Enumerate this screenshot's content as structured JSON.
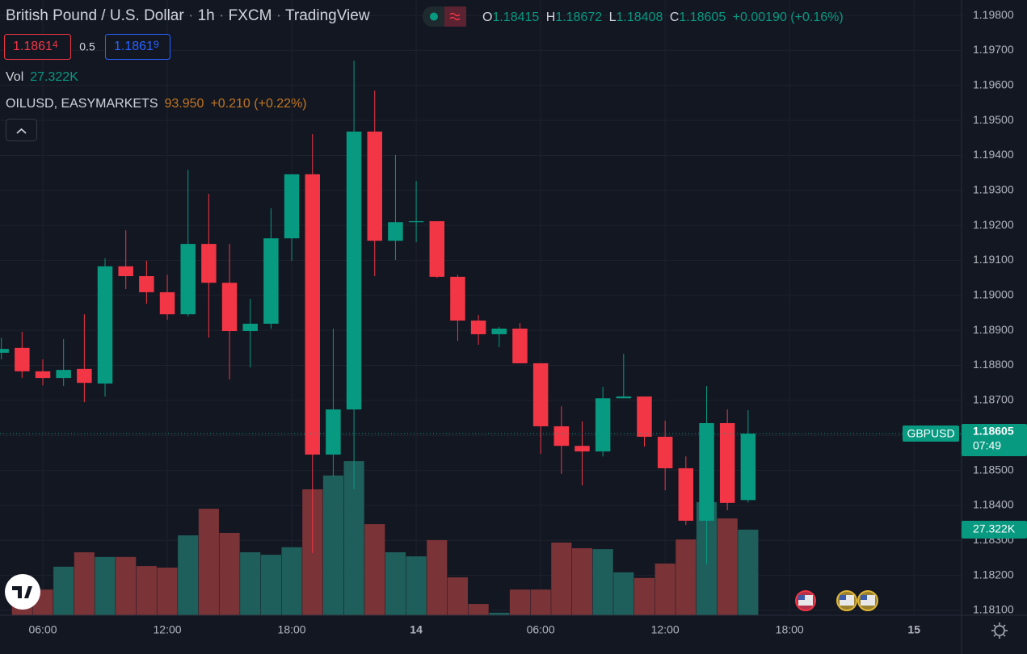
{
  "chart_data": {
    "type": "candlestick",
    "header": {
      "symbol": "British Pound / U.S. Dollar",
      "sep": "·",
      "interval": "1h",
      "exchange": "FXCM",
      "source": "TradingView",
      "open_label": "O",
      "open": 1.18415,
      "high_label": "H",
      "high": 1.18672,
      "low_label": "L",
      "low": 1.18408,
      "close_label": "C",
      "close": 1.18605,
      "change": "+0.00190 (+0.16%)"
    },
    "sell": {
      "price": "1.1861",
      "pip": "4"
    },
    "spread": "0.5",
    "buy": {
      "price": "1.1861",
      "pip": "9"
    },
    "volume_legend": {
      "label": "Vol",
      "value": "27.322K"
    },
    "overlay": {
      "name": "OILUSD, EASYMARKETS",
      "value": "93.950",
      "change": "+0.210 (+0.22%)"
    },
    "x": [
      4,
      5,
      6,
      7,
      8,
      9,
      10,
      11,
      12,
      13,
      14,
      15,
      16,
      17,
      18,
      19,
      20,
      21,
      22,
      23,
      24,
      25,
      26,
      27,
      28,
      29,
      30,
      31,
      32,
      33,
      34,
      35,
      36,
      37,
      38,
      39,
      40
    ],
    "open": [
      1.18836,
      1.1885,
      1.18783,
      1.18764,
      1.1879,
      1.18748,
      1.19083,
      1.19055,
      1.19009,
      1.18946,
      1.19147,
      1.19036,
      1.18898,
      1.18919,
      1.19163,
      1.19346,
      1.18545,
      1.18674,
      1.19468,
      1.19156,
      1.19209,
      1.19212,
      1.19053,
      1.18928,
      1.18889,
      1.18905,
      1.18806,
      1.18626,
      1.1857,
      1.18554,
      1.18706,
      1.18711,
      1.18596,
      1.18506,
      1.18356,
      1.18635,
      1.18415
    ],
    "high": [
      1.18879,
      1.18896,
      1.18817,
      1.18875,
      1.18946,
      1.19106,
      1.19186,
      1.19099,
      1.19059,
      1.19359,
      1.1929,
      1.19147,
      1.1899,
      1.19249,
      1.19346,
      1.19461,
      1.18905,
      1.19671,
      1.19585,
      1.19401,
      1.19327,
      1.19212,
      1.19059,
      1.18944,
      1.1891,
      1.18921,
      1.18806,
      1.18683,
      1.1864,
      1.18739,
      1.18833,
      1.18711,
      1.18642,
      1.1854,
      1.18741,
      1.18674,
      1.18672
    ],
    "low": [
      1.18817,
      1.18764,
      1.18743,
      1.18741,
      1.18695,
      1.18711,
      1.19018,
      1.18976,
      1.1893,
      1.1894,
      1.18879,
      1.1876,
      1.18794,
      1.18905,
      1.19099,
      1.18264,
      1.18483,
      1.18446,
      1.19055,
      1.19101,
      1.19152,
      1.1905,
      1.1887,
      1.18859,
      1.18852,
      1.18806,
      1.18547,
      1.1849,
      1.18457,
      1.1854,
      1.18706,
      1.18568,
      1.18443,
      1.18344,
      1.18231,
      1.18386,
      1.18408
    ],
    "close": [
      1.18847,
      1.18783,
      1.18764,
      1.18787,
      1.1875,
      1.19083,
      1.19055,
      1.19009,
      1.18946,
      1.19147,
      1.19036,
      1.18898,
      1.18919,
      1.19163,
      1.19346,
      1.18545,
      1.18674,
      1.19468,
      1.19156,
      1.19209,
      1.19212,
      1.19053,
      1.18928,
      1.18889,
      1.18905,
      1.18806,
      1.18626,
      1.1857,
      1.18554,
      1.18706,
      1.18711,
      1.18596,
      1.18506,
      1.18356,
      1.18635,
      1.18407,
      1.18605
    ],
    "volume": [
      null,
      4400,
      8200,
      15500,
      20100,
      18600,
      18600,
      15700,
      15200,
      25500,
      34000,
      26300,
      20100,
      19300,
      21700,
      40200,
      44600,
      49200,
      29100,
      20100,
      18800,
      24000,
      12100,
      3600,
      800,
      8200,
      8200,
      23200,
      21400,
      21100,
      13700,
      11900,
      16500,
      24200,
      36100,
      30900,
      27322
    ],
    "volume_lim": [
      0,
      196400
    ],
    "ylim": [
      1.18086,
      1.19844
    ],
    "xlim": [
      3.935,
      50.29
    ],
    "yticks": [
      {
        "value": 1.198,
        "label": "1.19800"
      },
      {
        "value": 1.197,
        "label": "1.19700"
      },
      {
        "value": 1.196,
        "label": "1.19600"
      },
      {
        "value": 1.195,
        "label": "1.19500"
      },
      {
        "value": 1.194,
        "label": "1.19400"
      },
      {
        "value": 1.193,
        "label": "1.19300"
      },
      {
        "value": 1.192,
        "label": "1.19200"
      },
      {
        "value": 1.191,
        "label": "1.19100"
      },
      {
        "value": 1.19,
        "label": "1.19000"
      },
      {
        "value": 1.189,
        "label": "1.18900"
      },
      {
        "value": 1.188,
        "label": "1.18800"
      },
      {
        "value": 1.187,
        "label": "1.18700"
      },
      {
        "value": 1.186,
        "label": "1.18600"
      },
      {
        "value": 1.185,
        "label": "1.18500"
      },
      {
        "value": 1.184,
        "label": "1.18400"
      },
      {
        "value": 1.183,
        "label": "1.18300"
      },
      {
        "value": 1.182,
        "label": "1.18200"
      },
      {
        "value": 1.181,
        "label": "1.18100"
      }
    ],
    "xticks": [
      {
        "value": 6,
        "label": "06:00"
      },
      {
        "value": 12,
        "label": "12:00"
      },
      {
        "value": 18,
        "label": "18:00"
      },
      {
        "value": 24,
        "label": "14"
      },
      {
        "value": 30,
        "label": "06:00"
      },
      {
        "value": 36,
        "label": "12:00"
      },
      {
        "value": 42,
        "label": "18:00"
      },
      {
        "value": 48,
        "label": "15"
      }
    ],
    "last_price": 1.18605,
    "last_symbol": "GBPUSD",
    "countdown": "07:49",
    "last_volume_label": "27.322K",
    "up_color": "#089981",
    "down_color": "#f23645",
    "volume_up_color": "#1f5f5b",
    "volume_down_color": "#7a3337",
    "grid": true
  }
}
